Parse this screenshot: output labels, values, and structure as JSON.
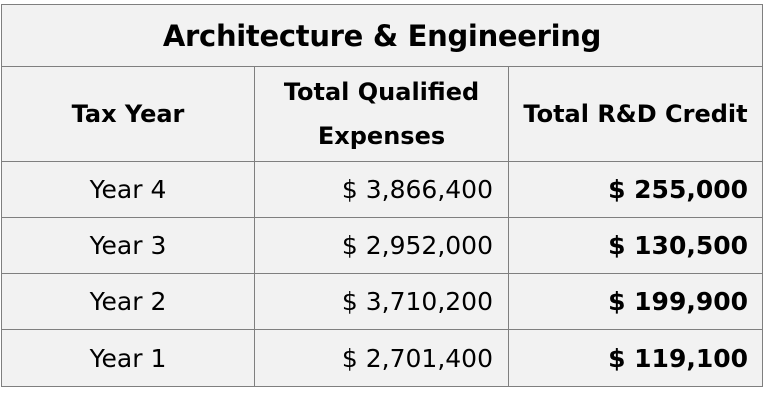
{
  "table": {
    "title": "Architecture & Engineering",
    "headers": {
      "year": "Tax Year",
      "expenses_line1": "Total Qualified",
      "expenses_line2": "Expenses",
      "credit": "Total R&D Credit"
    },
    "rows": [
      {
        "year": "Year 4",
        "expenses": "$ 3,866,400",
        "credit": "$ 255,000"
      },
      {
        "year": "Year 3",
        "expenses": "$ 2,952,000",
        "credit": "$ 130,500"
      },
      {
        "year": "Year 2",
        "expenses": "$ 3,710,200",
        "credit": "$ 199,900"
      },
      {
        "year": "Year 1",
        "expenses": "$ 2,701,400",
        "credit": "$ 119,100"
      }
    ]
  },
  "colors": {
    "cell_background": "#f2f2f2",
    "border": "#7f7f7f",
    "text": "#000000"
  }
}
